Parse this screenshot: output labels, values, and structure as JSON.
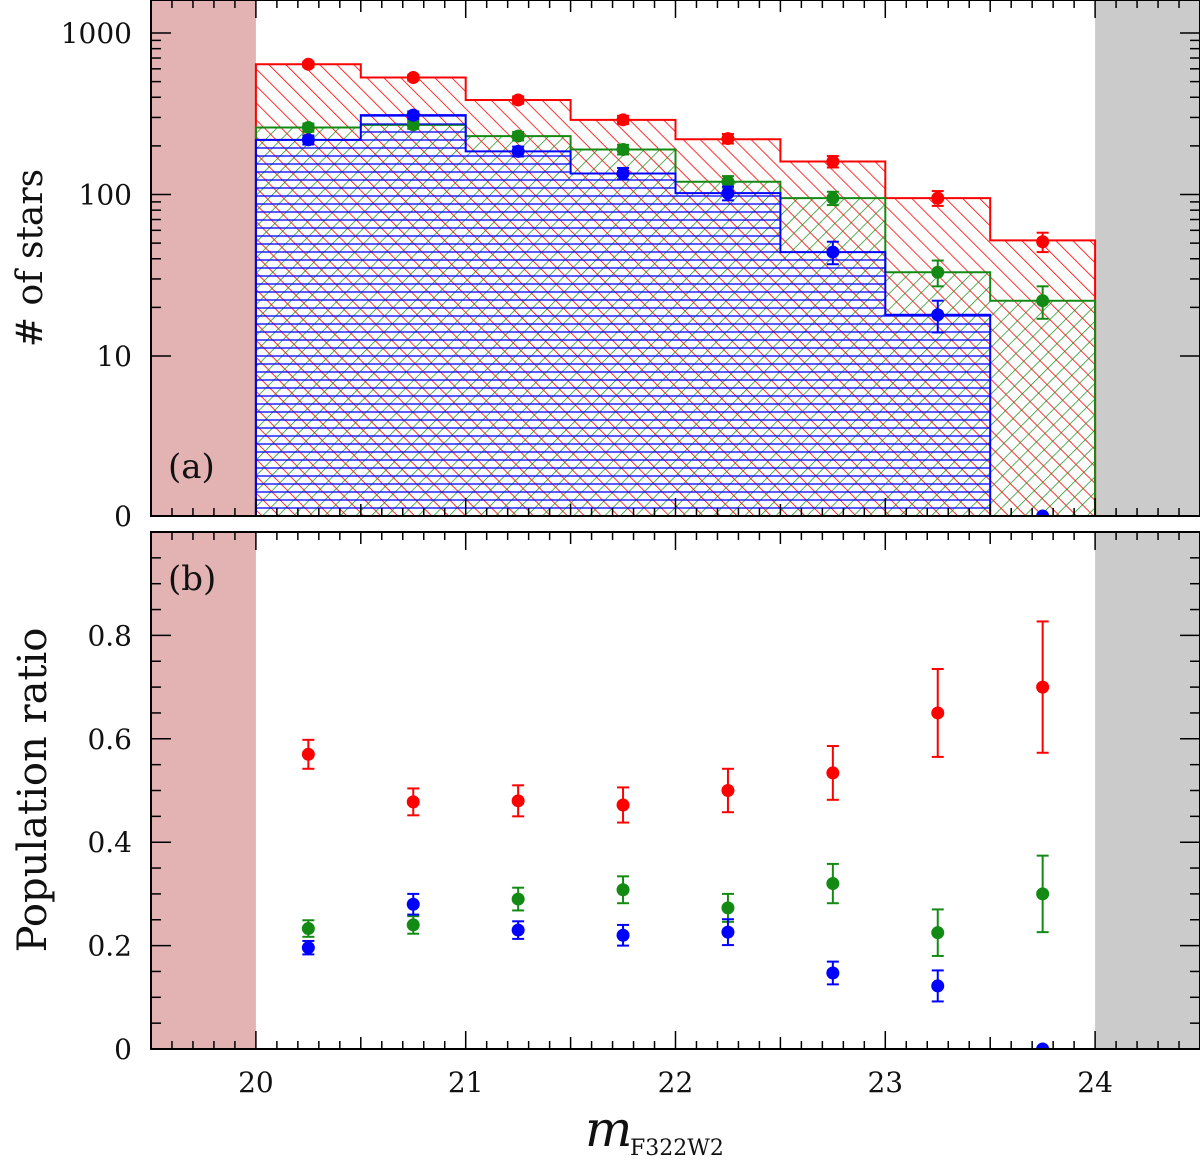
{
  "chart_data": [
    {
      "panel": "a",
      "type": "bar",
      "panel_label": "(a)",
      "ylabel": "# of stars",
      "yscale": "log (with 0 floor)",
      "ytick_labels": [
        "0",
        "10",
        "100",
        "1000"
      ],
      "xlim": [
        19.5,
        24.5
      ],
      "bin_edges": [
        20.0,
        20.5,
        21.0,
        21.5,
        22.0,
        22.5,
        23.0,
        23.5,
        24.0
      ],
      "x": [
        20.25,
        20.75,
        21.25,
        21.75,
        22.25,
        22.75,
        23.25,
        23.75
      ],
      "series": [
        {
          "name": "red",
          "color": "#ff0000",
          "hist": [
            640,
            530,
            385,
            290,
            220,
            160,
            95,
            52
          ],
          "points": [
            640,
            530,
            385,
            290,
            222,
            160,
            95,
            51
          ],
          "err": [
            25,
            22,
            20,
            17,
            15,
            13,
            10,
            7
          ]
        },
        {
          "name": "green",
          "color": "#138a13",
          "hist": [
            260,
            270,
            230,
            190,
            120,
            95,
            33,
            22
          ],
          "points": [
            260,
            270,
            230,
            190,
            120,
            95,
            33,
            22
          ],
          "err": [
            15,
            15,
            14,
            13,
            10,
            9,
            6,
            5
          ]
        },
        {
          "name": "blue",
          "color": "#0000ff",
          "hist": [
            218,
            310,
            185,
            135,
            102,
            44,
            18,
            0
          ],
          "points": [
            218,
            310,
            185,
            135,
            102,
            44,
            18,
            0
          ],
          "err": [
            14,
            17,
            13,
            11,
            10,
            7,
            4,
            0
          ]
        }
      ],
      "excluded_regions": [
        {
          "range": [
            19.5,
            20.0
          ],
          "color": "#e3b2b2"
        },
        {
          "range": [
            24.0,
            24.5
          ],
          "color": "#cbcbcb"
        }
      ]
    },
    {
      "panel": "b",
      "type": "scatter",
      "panel_label": "(b)",
      "ylabel": "Population ratio",
      "xlabel_main": "m",
      "xlabel_sub": "F322W2",
      "xlim": [
        19.5,
        24.5
      ],
      "ylim": [
        0,
        1.0
      ],
      "xtick_labels": [
        "20",
        "21",
        "22",
        "23",
        "24"
      ],
      "ytick_labels": [
        "0",
        "0.2",
        "0.4",
        "0.6",
        "0.8"
      ],
      "x": [
        20.25,
        20.75,
        21.25,
        21.75,
        22.25,
        22.75,
        23.25,
        23.75
      ],
      "series": [
        {
          "name": "red",
          "color": "#ff0000",
          "values": [
            0.57,
            0.478,
            0.48,
            0.472,
            0.5,
            0.534,
            0.65,
            0.7
          ],
          "err": [
            0.028,
            0.026,
            0.03,
            0.034,
            0.042,
            0.052,
            0.085,
            0.127
          ]
        },
        {
          "name": "green",
          "color": "#138a13",
          "values": [
            0.233,
            0.24,
            0.29,
            0.308,
            0.273,
            0.32,
            0.225,
            0.3
          ],
          "err": [
            0.016,
            0.017,
            0.022,
            0.026,
            0.027,
            0.038,
            0.045,
            0.074
          ]
        },
        {
          "name": "blue",
          "color": "#0000ff",
          "values": [
            0.196,
            0.28,
            0.23,
            0.22,
            0.226,
            0.147,
            0.122,
            0.0
          ],
          "err": [
            0.013,
            0.02,
            0.017,
            0.02,
            0.025,
            0.022,
            0.03,
            0.0
          ]
        }
      ],
      "excluded_regions": [
        {
          "range": [
            19.5,
            20.0
          ],
          "color": "#e3b2b2"
        },
        {
          "range": [
            24.0,
            24.5
          ],
          "color": "#cbcbcb"
        }
      ]
    }
  ]
}
